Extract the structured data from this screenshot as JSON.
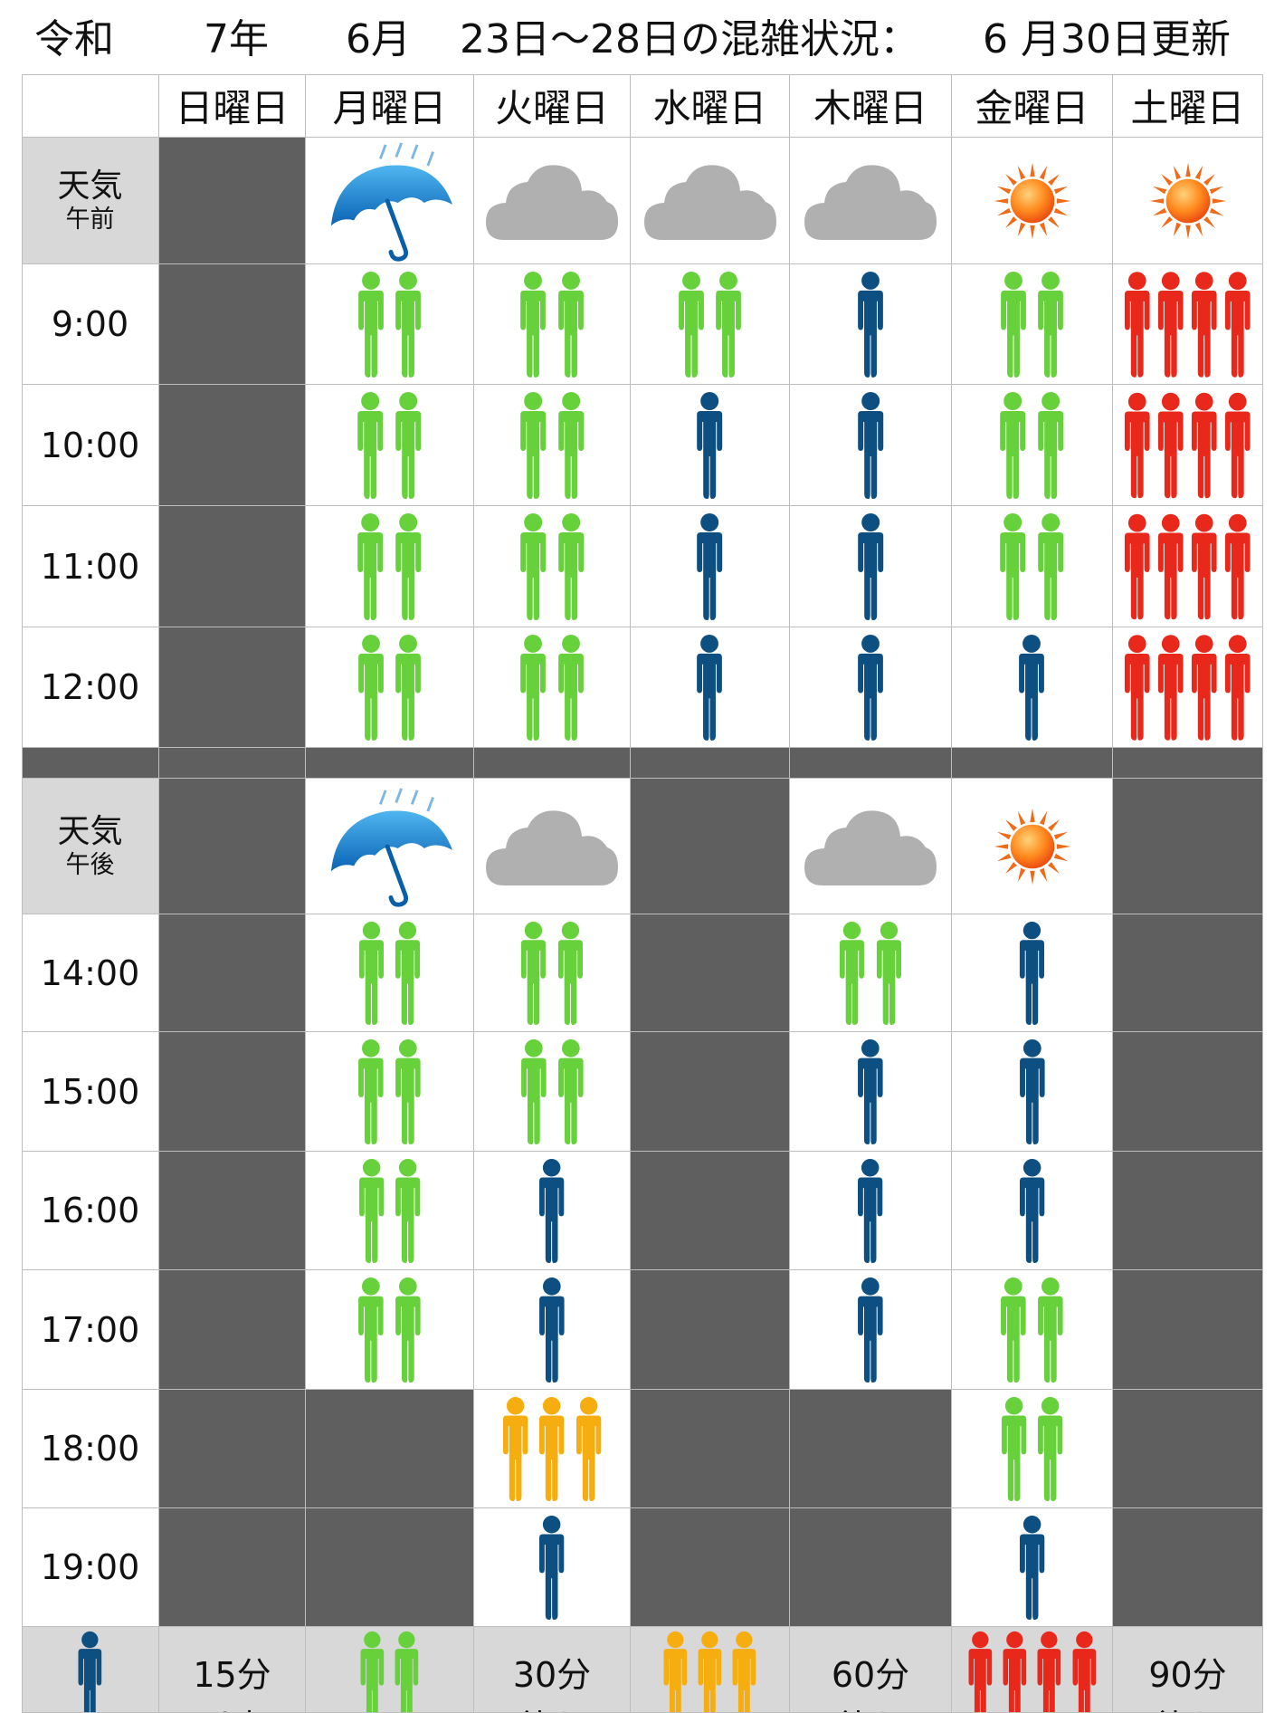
{
  "title": {
    "era": "令和",
    "year": "7年",
    "month": "6月",
    "range": "23日〜28日の混雑状況：",
    "updated": "6 月30日更新"
  },
  "days": [
    "日曜日",
    "月曜日",
    "火曜日",
    "水曜日",
    "木曜日",
    "金曜日",
    "土曜日"
  ],
  "morning": {
    "weather_label": "天気",
    "weather_sub": "午前",
    "weather": [
      "none",
      "rain-umbrella-icon",
      "cloud-icon",
      "cloud-icon",
      "cloud-icon",
      "sun-icon",
      "sun-icon"
    ],
    "times": [
      "9:00",
      "10:00",
      "11:00",
      "12:00"
    ],
    "levels": [
      [
        0,
        2,
        2,
        2,
        1,
        2,
        4
      ],
      [
        0,
        2,
        2,
        1,
        1,
        2,
        4
      ],
      [
        0,
        2,
        2,
        1,
        1,
        2,
        4
      ],
      [
        0,
        2,
        2,
        1,
        1,
        1,
        4
      ]
    ]
  },
  "afternoon": {
    "weather_label": "天気",
    "weather_sub": "午後",
    "weather": [
      "none",
      "rain-umbrella-icon",
      "cloud-icon",
      "none",
      "cloud-icon",
      "sun-icon",
      "none"
    ],
    "times": [
      "14:00",
      "15:00",
      "16:00",
      "17:00",
      "18:00",
      "19:00"
    ],
    "levels": [
      [
        0,
        2,
        2,
        0,
        2,
        1,
        0
      ],
      [
        0,
        2,
        2,
        0,
        1,
        1,
        0
      ],
      [
        0,
        2,
        1,
        0,
        1,
        1,
        0
      ],
      [
        0,
        2,
        1,
        0,
        1,
        2,
        0
      ],
      [
        0,
        0,
        3,
        0,
        0,
        2,
        0
      ],
      [
        0,
        0,
        1,
        0,
        0,
        1,
        0
      ]
    ]
  },
  "legend": [
    {
      "level": 1,
      "line1": "15分",
      "line2": "以内"
    },
    {
      "level": 2,
      "line1": "30分",
      "line2": "待ち"
    },
    {
      "level": 3,
      "line1": "60分",
      "line2": "待ち"
    },
    {
      "level": 4,
      "line1": "90分",
      "line2": "待ち"
    }
  ],
  "colors": {
    "level1": "#0c4f80",
    "level2": "#66d13a",
    "level3": "#f6ad10",
    "level4": "#e8281b",
    "closed": "#5f5f5f",
    "label_bg": "#d8d8d8"
  }
}
